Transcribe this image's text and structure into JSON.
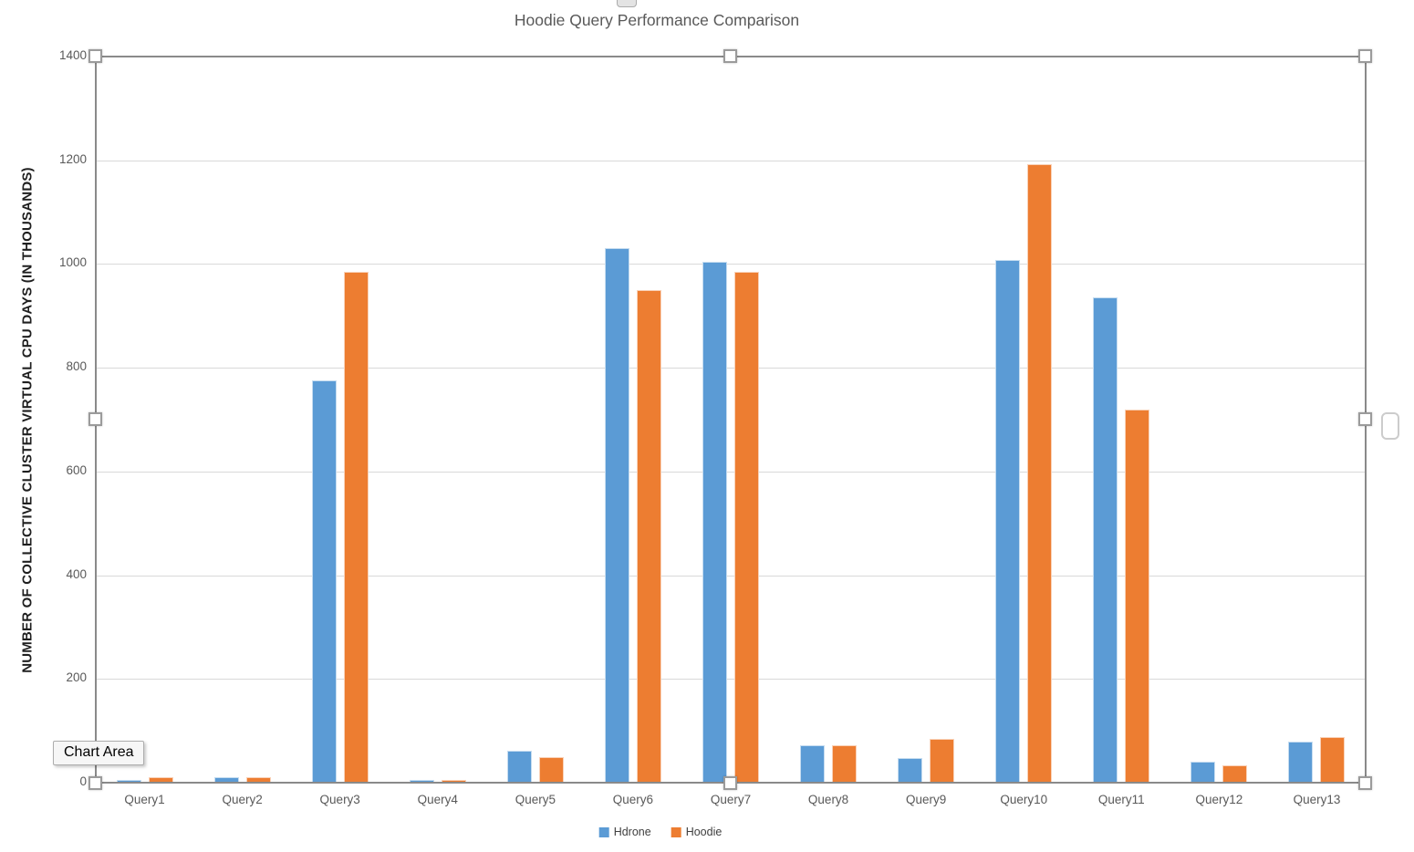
{
  "chart_data": {
    "type": "bar",
    "title": "Hoodie Query Performance Comparison",
    "xlabel": "",
    "ylabel": "NUMBER OF COLLECTIVE CLUSTER VIRTUAL CPU DAYS (IN THOUSANDS)",
    "categories": [
      "Query1",
      "Query2",
      "Query3",
      "Query4",
      "Query5",
      "Query6",
      "Query7",
      "Query8",
      "Query9",
      "Query10",
      "Query11",
      "Query12",
      "Query13"
    ],
    "series": [
      {
        "name": "Hdrone",
        "color": "#5B9BD5",
        "values": [
          5,
          10,
          775,
          5,
          62,
          1030,
          1005,
          73,
          48,
          1008,
          935,
          41,
          80
        ]
      },
      {
        "name": "Hoodie",
        "color": "#ED7D31",
        "values": [
          10,
          10,
          985,
          5,
          50,
          950,
          985,
          73,
          85,
          1193,
          720,
          33,
          88
        ]
      }
    ],
    "ylim": [
      0,
      1400
    ],
    "ytick_step": 200,
    "grid": true,
    "legend_position": "bottom"
  },
  "overlay": {
    "tooltip": "Chart Area"
  },
  "colors": {
    "series_blue": "#5B9BD5",
    "series_orange": "#ED7D31",
    "gridline": "#D9D9D9",
    "axis_border": "#8A8A8A",
    "title_text": "#595959",
    "tick_text": "#595959"
  }
}
